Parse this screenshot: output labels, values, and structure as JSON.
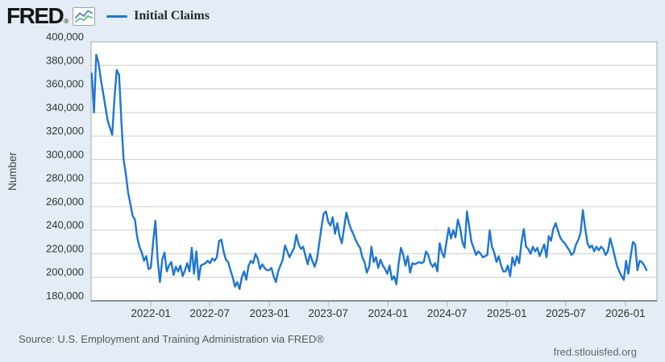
{
  "header": {
    "logo_text": "FRED",
    "logo_registered": "®"
  },
  "legend": {
    "label": "Initial Claims",
    "color": "#1e76d2"
  },
  "footer": {
    "source": "Source: U.S. Employment and Training Administration via FRED®",
    "site": "fred.stlouisfed.org"
  },
  "colors": {
    "background": "#e4edf5",
    "plot_background": "#ffffff",
    "gridline": "#cccccc",
    "plot_border": "#a9a9a9",
    "axis_line": "#8a9097",
    "tick": "#a8b4bf",
    "tick_label": "#333333",
    "axis_title": "#444444",
    "series_line": "#1e76d2"
  },
  "chart_data": {
    "type": "line",
    "title": "Initial Claims",
    "xlabel": "",
    "ylabel": "Number",
    "ylim": [
      180000,
      400000
    ],
    "grid": true,
    "legend_position": "top-left",
    "y_ticks": [
      180000,
      200000,
      220000,
      240000,
      260000,
      280000,
      300000,
      320000,
      340000,
      360000,
      380000,
      400000
    ],
    "x_range": [
      "2021-07-01",
      "2026-04-08"
    ],
    "x_ticks": [
      {
        "label": "2022-01",
        "date": "2022-01-01"
      },
      {
        "label": "2022-07",
        "date": "2022-07-01"
      },
      {
        "label": "2023-01",
        "date": "2023-01-01"
      },
      {
        "label": "2023-07",
        "date": "2023-07-01"
      },
      {
        "label": "2024-01",
        "date": "2024-01-01"
      },
      {
        "label": "2024-07",
        "date": "2024-07-01"
      },
      {
        "label": "2025-01",
        "date": "2025-01-01"
      },
      {
        "label": "2025-07",
        "date": "2025-07-01"
      },
      {
        "label": "2026-01",
        "date": "2026-01-01"
      }
    ],
    "series": [
      {
        "name": "Initial Claims",
        "color": "#1e76d2",
        "frequency": "weekly",
        "start_date": "2021-07-03",
        "values": [
          373000,
          340000,
          389000,
          382000,
          368000,
          357000,
          345000,
          333000,
          327000,
          321000,
          352000,
          376000,
          372000,
          334000,
          300000,
          288000,
          272000,
          262000,
          252000,
          249000,
          234000,
          226000,
          221000,
          214000,
          218000,
          207000,
          208000,
          230000,
          248000,
          215000,
          196000,
          215000,
          221000,
          205000,
          210000,
          213000,
          202000,
          209000,
          205000,
          210000,
          201000,
          206000,
          212000,
          205000,
          225000,
          203000,
          222000,
          198000,
          210000,
          211000,
          212000,
          214000,
          212000,
          216000,
          214000,
          217000,
          231000,
          232000,
          222000,
          215000,
          213000,
          206000,
          200000,
          192000,
          196000,
          190000,
          200000,
          205000,
          198000,
          210000,
          214000,
          212000,
          220000,
          216000,
          207000,
          211000,
          208000,
          206000,
          206000,
          208000,
          201000,
          196000,
          205000,
          210000,
          215000,
          227000,
          222000,
          217000,
          221000,
          225000,
          236000,
          228000,
          224000,
          226000,
          218000,
          211000,
          220000,
          214000,
          209000,
          215000,
          228000,
          242000,
          254000,
          256000,
          247000,
          244000,
          251000,
          237000,
          246000,
          235000,
          229000,
          242000,
          255000,
          247000,
          241000,
          237000,
          232000,
          228000,
          225000,
          217000,
          213000,
          204000,
          209000,
          226000,
          213000,
          217000,
          208000,
          215000,
          210000,
          207000,
          203000,
          210000,
          198000,
          201000,
          194000,
          212000,
          225000,
          219000,
          210000,
          218000,
          204000,
          212000,
          211000,
          212000,
          213000,
          212000,
          213000,
          222000,
          219000,
          212000,
          209000,
          212000,
          205000,
          229000,
          221000,
          217000,
          230000,
          242000,
          233000,
          240000,
          234000,
          249000,
          242000,
          230000,
          225000,
          256000,
          243000,
          230000,
          225000,
          219000,
          222000,
          220000,
          217000,
          218000,
          219000,
          240000,
          226000,
          221000,
          213000,
          218000,
          210000,
          205000,
          205000,
          210000,
          201000,
          217000,
          210000,
          218000,
          212000,
          230000,
          241000,
          226000,
          224000,
          220000,
          226000,
          222000,
          225000,
          218000,
          223000,
          228000,
          217000,
          235000,
          231000,
          241000,
          246000,
          240000,
          234000,
          231000,
          229000,
          226000,
          223000,
          219000,
          221000,
          228000,
          232000,
          238000,
          257000,
          242000,
          229000,
          225000,
          227000,
          222000,
          226000,
          223000,
          226000,
          224000,
          219000,
          222000,
          233000,
          226000,
          218000,
          210000,
          205000,
          201000,
          198000,
          214000,
          203000,
          218000,
          230000,
          228000,
          206000,
          214000,
          213000,
          210000,
          206000
        ]
      }
    ]
  }
}
